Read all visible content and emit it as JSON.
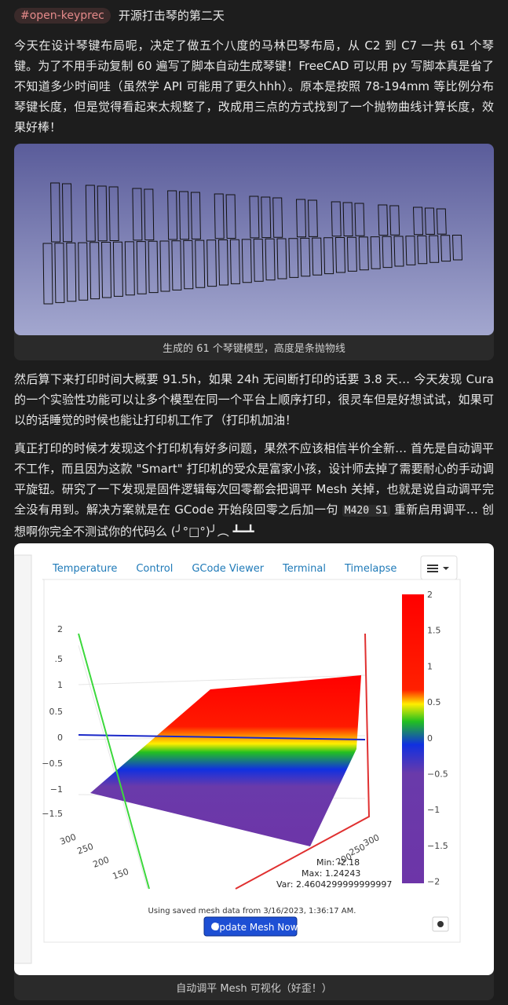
{
  "post": {
    "tag": "#open-keyprec",
    "title": "开源打击琴的第二天",
    "paragraph1": "今天在设计琴键布局呢，决定了做五个八度的马林巴琴布局，从 C2 到 C7 一共 61 个琴键。为了不用手动复制 60 遍写了脚本自动生成琴键！FreeCAD 可以用 py 写脚本真是省了不知道多少时间哇（虽然学 API 可能用了更久hhh）。原本是按照 78-194mm 等比例分布琴键长度，但是觉得看起来太规整了，改成用三点的方式找到了一个抛物曲线计算长度，效果好棒！",
    "figure1": {
      "caption": "生成的 61 个琴键模型，高度是条抛物线"
    },
    "paragraph2": "然后算下来打印时间大概要 91.5h，如果 24h 无间断打印的话要 3.8 天… 今天发现 Cura 的一个实验性功能可以让多个模型在同一个平台上顺序打印，很灵车但是好想试试，如果可以的话睡觉的时候也能让打印机工作了（打印机加油！",
    "paragraph3": {
      "before": "真正打印的时候才发现这个打印机有好多问题，果然不应该相信半价全新… 首先是自动调平不工作，而且因为这款 \"Smart\" 打印机的受众是富家小孩，设计师去掉了需要耐心的手动调平旋钮。研究了一下发现是固件逻辑每次回零都会把调平 Mesh 关掉，也就是说自动调平完全没有用到。解决方案就是在 GCode 开始段回零之后加一句 ",
      "code": "M420 S1",
      "after": " 重新启用调平… 创想啊你完全不测试你的代码么 (╯°□°)╯︵ ┻━┻"
    },
    "figure2": {
      "tabs": [
        "Temperature",
        "Control",
        "GCode Viewer",
        "Terminal",
        "Timelapse"
      ],
      "z_labels": [
        "2",
        ".5",
        "1",
        "0.5",
        "0",
        "−0.5",
        "−1",
        "−1.5"
      ],
      "colorbar_labels": [
        "2",
        "1.5",
        "1",
        "0.5",
        "0",
        "−0.5",
        "−1",
        "−1.5",
        "−2"
      ],
      "x_labels": [
        "300",
        "250",
        "200",
        "150"
      ],
      "y_labels": [
        "300",
        "250",
        "200"
      ],
      "stats": [
        "Min: -2.18",
        "Max: 1.24243",
        "Var: 2.4604299999999997"
      ],
      "note": "Using saved mesh data from 3/16/2023, 1:36:17 AM.",
      "button": "Update Mesh Now",
      "caption": "自动调平 Mesh 可视化（好歪！）"
    }
  }
}
